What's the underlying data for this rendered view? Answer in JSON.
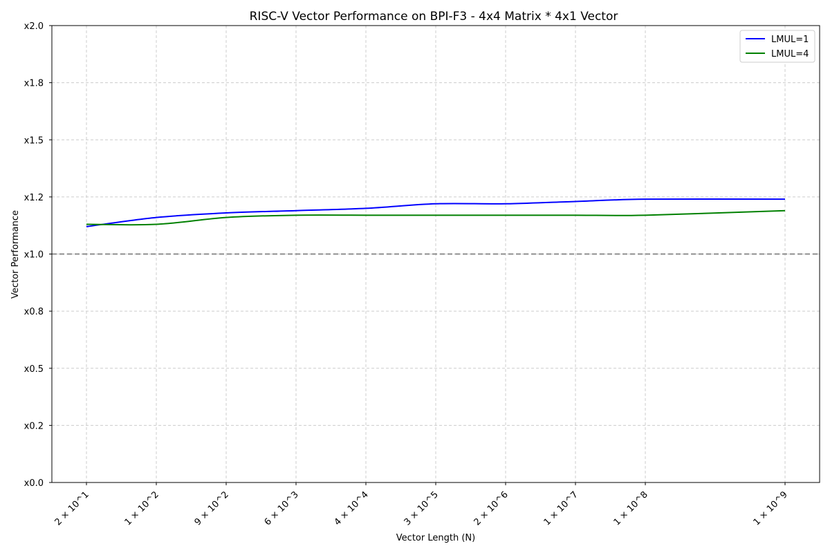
{
  "chart_data": {
    "type": "line",
    "title": "RISC-V Vector Performance on BPI-F3 - 4x4 Matrix * 4x1 Vector",
    "xlabel": "Vector Length (N)",
    "ylabel": "Vector Performance",
    "x_tick_labels": [
      "2 × 10^1",
      "1 × 10^2",
      "9 × 10^2",
      "6 × 10^3",
      "4 × 10^4",
      "3 × 10^5",
      "2 × 10^6",
      "1 × 10^7",
      "1 × 10^8",
      "1 × 10^9"
    ],
    "y_ticks": [
      0,
      0.25,
      0.5,
      0.75,
      1.0,
      1.25,
      1.5,
      1.75,
      2.0
    ],
    "y_tick_labels": [
      "x0.0",
      "x0.2",
      "x0.5",
      "x0.8",
      "x1.0",
      "x1.2",
      "x1.5",
      "x1.8",
      "x2.0"
    ],
    "ylim": [
      0,
      2.0
    ],
    "grid": true,
    "legend_position": "top-right",
    "reference_line": {
      "y": 1.0,
      "style": "dashed",
      "color": "#808080"
    },
    "series": [
      {
        "name": "LMUL=1",
        "color": "#0000ff",
        "values": [
          1.12,
          1.16,
          1.18,
          1.19,
          1.2,
          1.22,
          1.22,
          1.23,
          1.24,
          1.24
        ]
      },
      {
        "name": "LMUL=4",
        "color": "#008000",
        "values": [
          1.13,
          1.13,
          1.16,
          1.17,
          1.17,
          1.17,
          1.17,
          1.17,
          1.17,
          1.19
        ]
      }
    ]
  }
}
